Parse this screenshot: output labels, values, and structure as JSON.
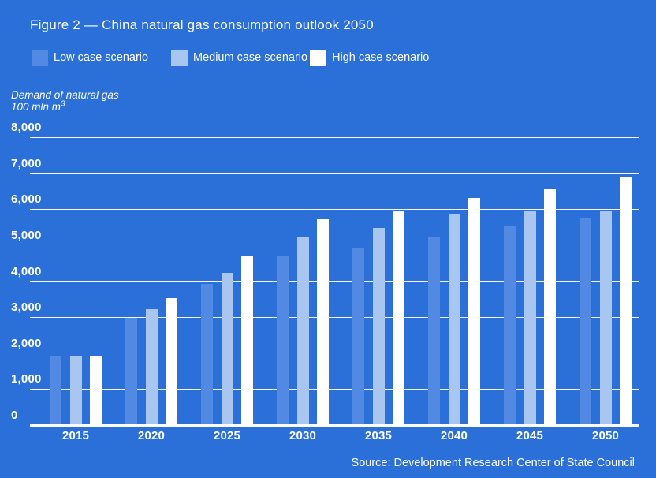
{
  "figure": {
    "title": "Figure 2 — China natural gas consumption outlook 2050",
    "source": "Source: Development Research Center of State Council"
  },
  "axis_unit": {
    "line1": "Demand of natural gas",
    "line2": "100 mln m",
    "superscript": "3"
  },
  "colors": {
    "background": "#2a70d8",
    "low_case": "#5289e2",
    "medium_case": "#a8c6ef",
    "high_case": "#ffffff",
    "gridline": "#ffffff",
    "text": "#ffffff"
  },
  "chart_data": {
    "type": "bar",
    "title": "Figure 2 — China natural gas consumption outlook 2050",
    "ylabel": "Demand of natural gas, 100 mln m3",
    "xlabel": "",
    "categories": [
      "2015",
      "2020",
      "2025",
      "2030",
      "2035",
      "2040",
      "2045",
      "2050"
    ],
    "series": [
      {
        "name": "Low case scenario",
        "color": "#5289e2",
        "values": [
          1900,
          2950,
          3900,
          4700,
          4900,
          5200,
          5500,
          5750
        ]
      },
      {
        "name": "Medium case scenario",
        "color": "#a8c6ef",
        "values": [
          1900,
          3200,
          4200,
          5200,
          5450,
          5850,
          5950,
          5950
        ]
      },
      {
        "name": "High case scenario",
        "color": "#ffffff",
        "values": [
          1900,
          3500,
          4700,
          5700,
          5950,
          6300,
          6550,
          6850
        ]
      }
    ],
    "ylim": [
      0,
      8000
    ],
    "yticks": [
      0,
      1000,
      2000,
      3000,
      4000,
      5000,
      6000,
      7000,
      8000
    ],
    "ytick_labels": [
      "0",
      "1,000",
      "2,000",
      "3,000",
      "4,000",
      "5,000",
      "6,000",
      "7,000",
      "8,000"
    ],
    "grid": "horizontal",
    "legend_position": "top-left",
    "source": "Source: Development Research Center of State Council"
  }
}
